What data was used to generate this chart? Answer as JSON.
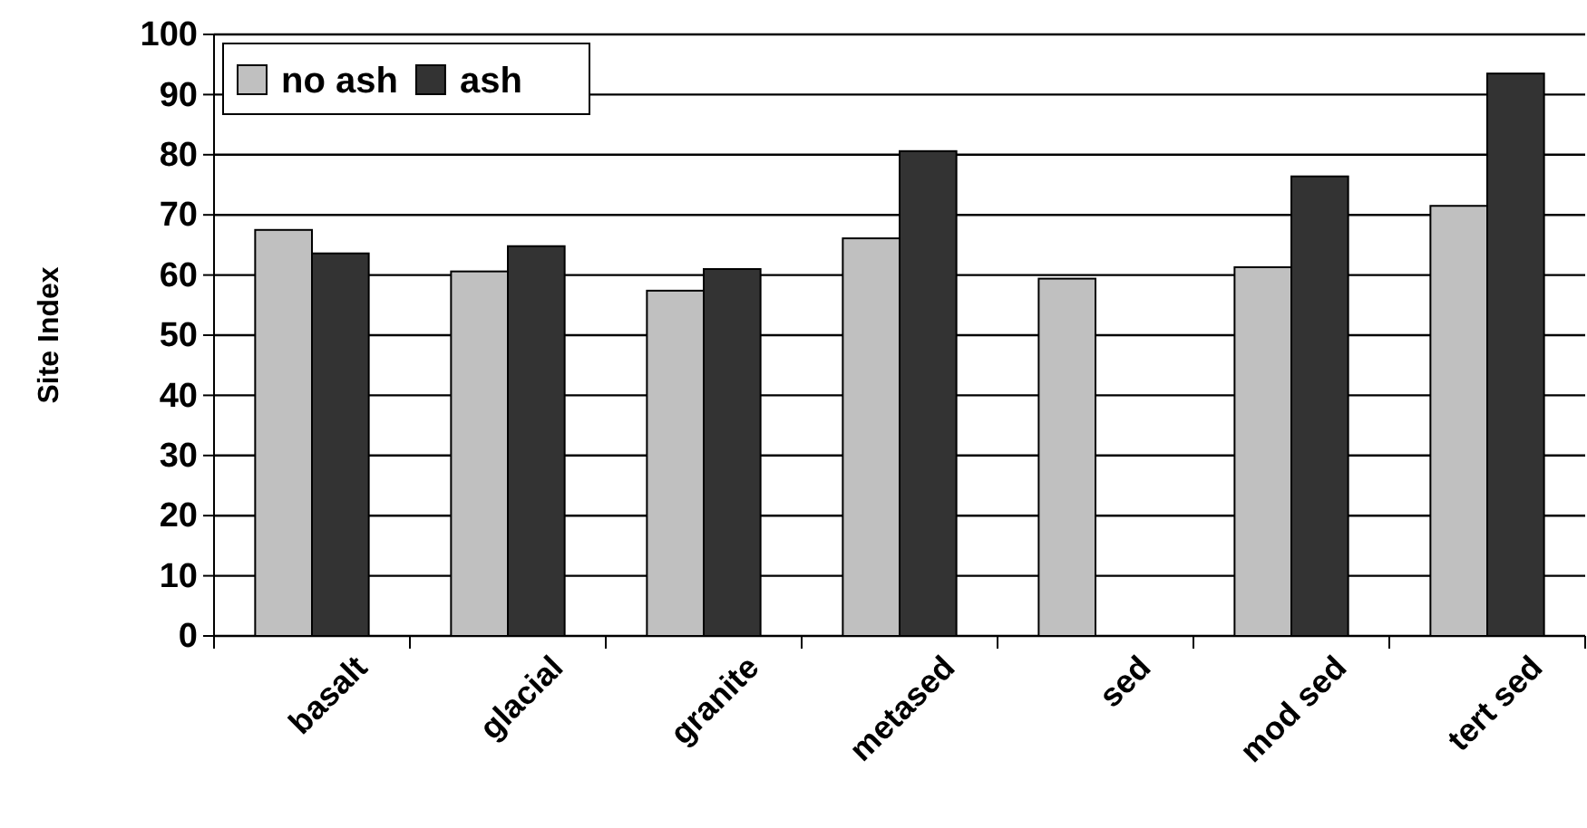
{
  "chart_data": {
    "type": "bar",
    "ylabel": "Site Index",
    "categories": [
      "basalt",
      "glacial",
      "granite",
      "metased",
      "sed",
      "mod sed",
      "tert sed"
    ],
    "series": [
      {
        "name": "no ash",
        "color": "#c0c0c0",
        "values": [
          67.5,
          60.6,
          57.4,
          66.1,
          59.4,
          61.3,
          71.5
        ]
      },
      {
        "name": "ash",
        "color": "#333333",
        "values": [
          63.6,
          64.8,
          61.0,
          80.6,
          null,
          76.4,
          93.5
        ]
      }
    ],
    "ylim": [
      0,
      100
    ],
    "yticks": [
      0,
      10,
      20,
      30,
      40,
      50,
      60,
      70,
      80,
      90,
      100
    ],
    "grid": "y",
    "legend": "top left"
  }
}
